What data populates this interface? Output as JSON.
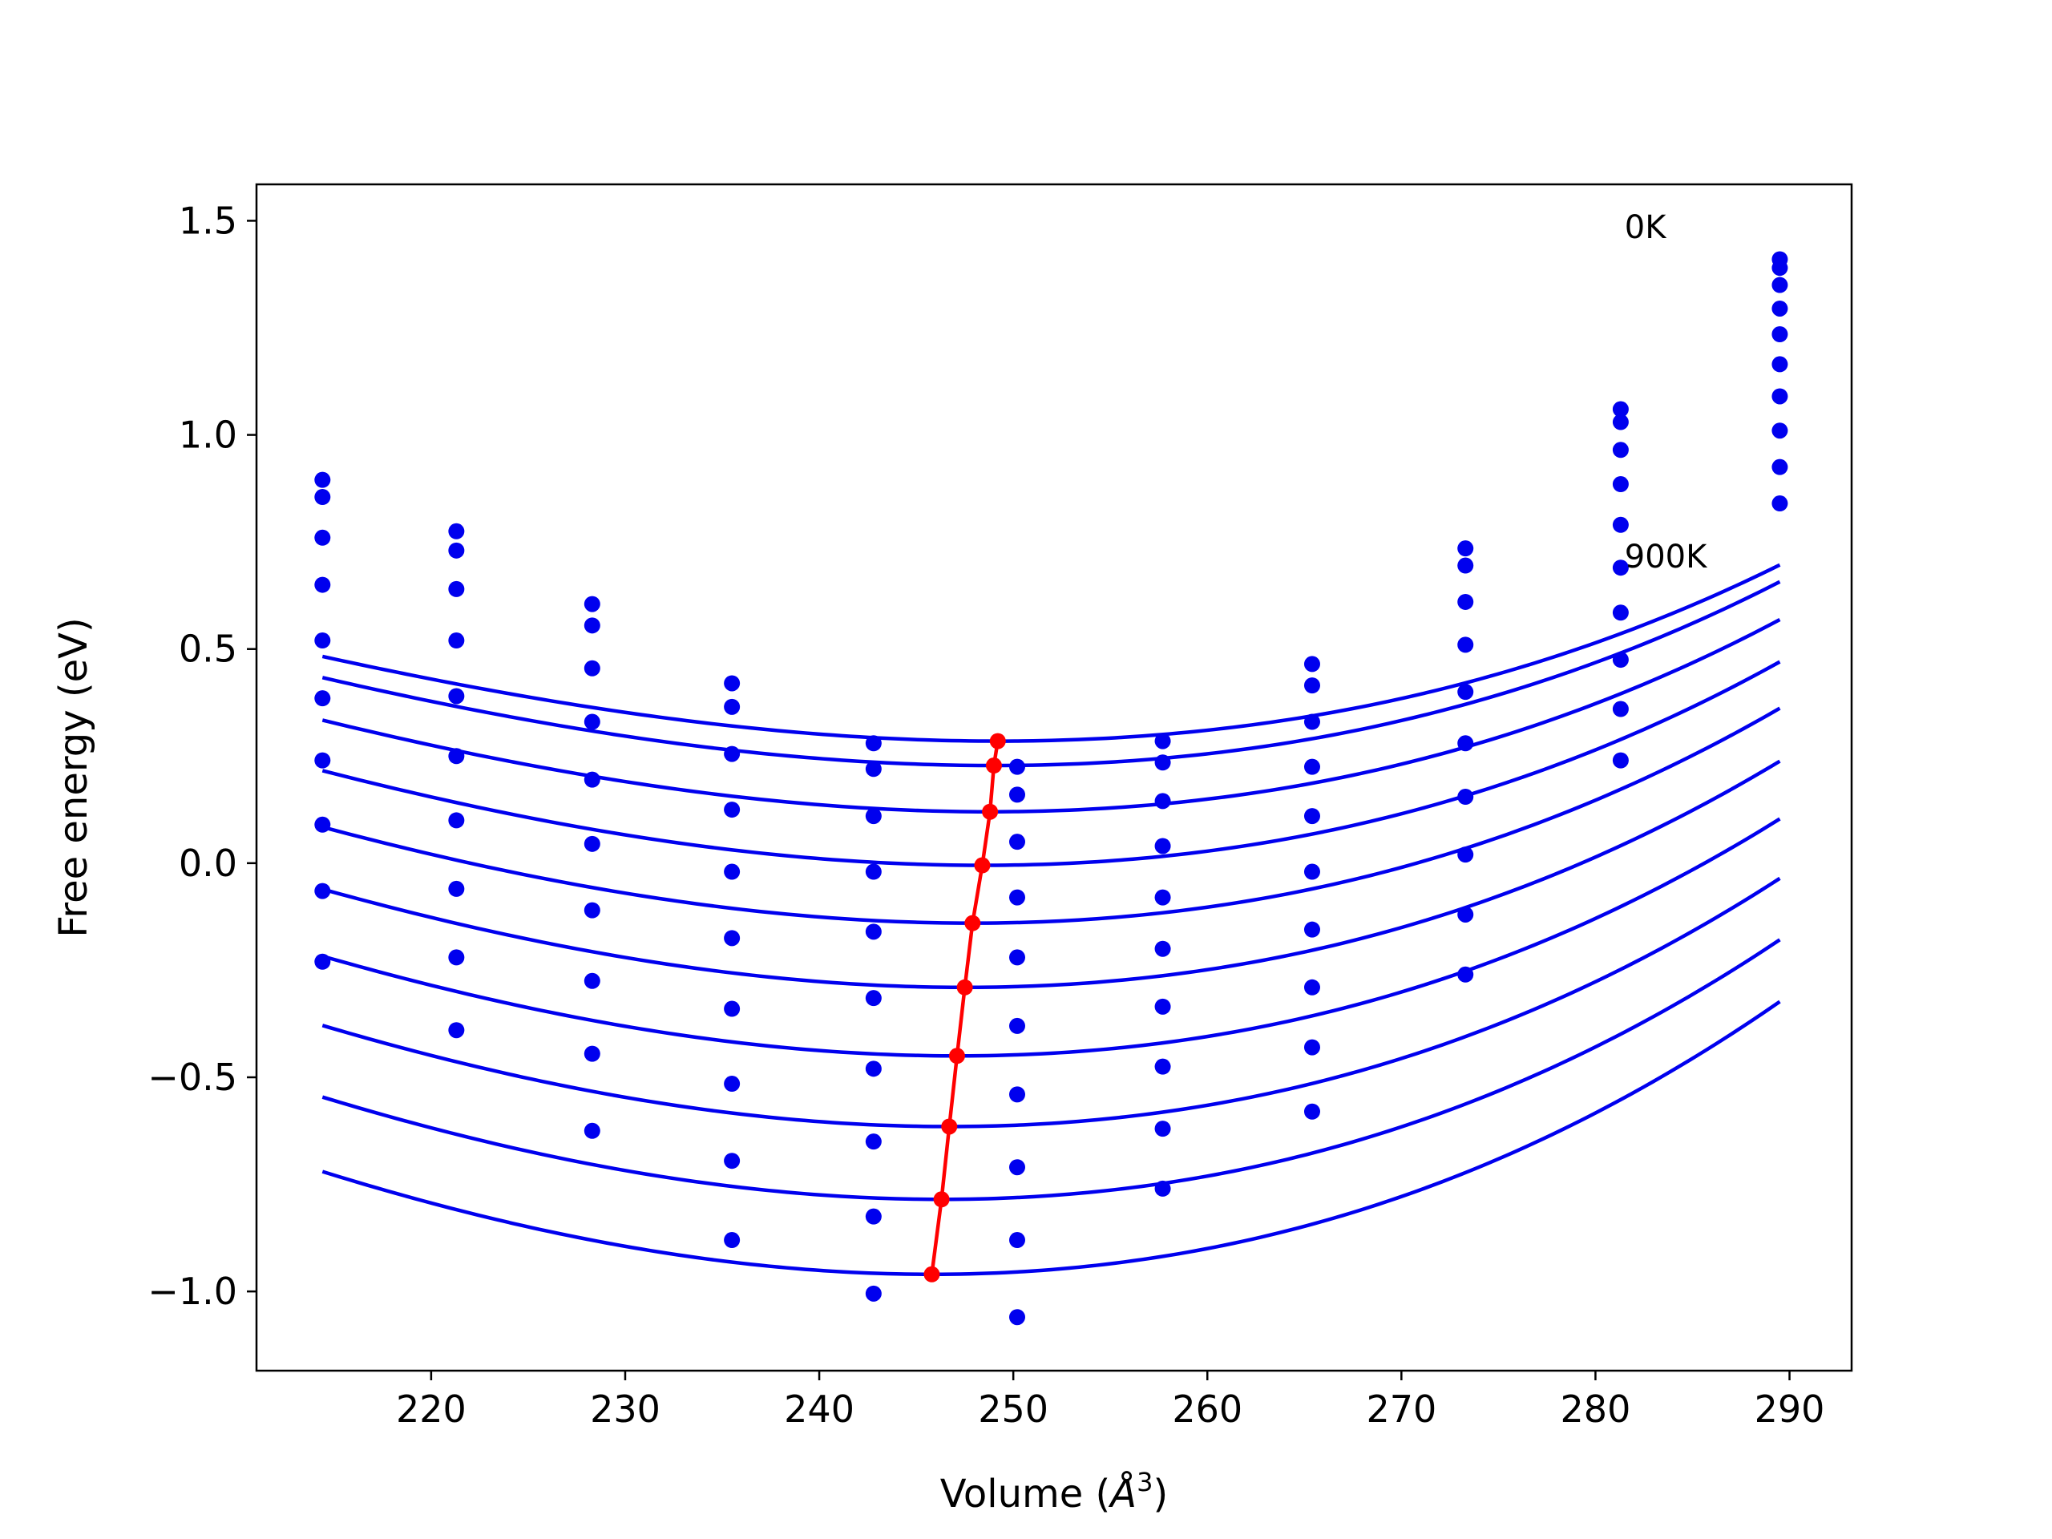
{
  "chart_data": {
    "type": "scatter",
    "title": "",
    "xlabel": "Volume (",
    "xlabel_symbol": "Å",
    "xlabel_exp": "3",
    "xlabel_close": ")",
    "ylabel": "Free energy (eV)",
    "xlim": [
      211,
      293.2
    ],
    "ylim": [
      -1.185,
      1.585
    ],
    "xticks": [
      220,
      230,
      240,
      250,
      260,
      270,
      280,
      290
    ],
    "yticks": [
      -1.0,
      -0.5,
      0.0,
      0.5,
      1.0,
      1.5
    ],
    "xtick_labels": [
      "220",
      "230",
      "240",
      "250",
      "260",
      "270",
      "280",
      "290"
    ],
    "ytick_labels": [
      "−1.0",
      "−0.5",
      "0.0",
      "0.5",
      "1.0",
      "1.5"
    ],
    "grid": false,
    "annotations": [
      {
        "text": "0K",
        "x": 281.5,
        "y": 1.46
      },
      {
        "text": "900K",
        "x": 281.5,
        "y": 0.69
      }
    ],
    "volumes": [
      214.4,
      221.3,
      228.3,
      235.5,
      242.8,
      250.2,
      257.7,
      265.4,
      273.3,
      281.3,
      289.5
    ],
    "series": [
      {
        "values": [
          0.895,
          0.775,
          0.605,
          0.42,
          0.28,
          0.225,
          0.285,
          0.465,
          0.735,
          1.06,
          1.41
        ],
        "fit": {
          "v0": 249.2,
          "e0": 0.285,
          "a": 0.000205,
          "b": 1.2e-06
        }
      },
      {
        "values": [
          0.855,
          0.73,
          0.555,
          0.365,
          0.22,
          0.16,
          0.235,
          0.415,
          0.695,
          1.03,
          1.39
        ],
        "fit": {
          "v0": 249.0,
          "e0": 0.228,
          "a": 0.000213,
          "b": 1.2e-06
        }
      },
      {
        "values": [
          0.76,
          0.64,
          0.455,
          0.255,
          0.11,
          0.05,
          0.145,
          0.33,
          0.61,
          0.965,
          1.35
        ],
        "fit": {
          "v0": 248.8,
          "e0": 0.12,
          "a": 0.000222,
          "b": 1.2e-06
        }
      },
      {
        "values": [
          0.65,
          0.52,
          0.33,
          0.125,
          -0.02,
          -0.08,
          0.04,
          0.225,
          0.51,
          0.885,
          1.295
        ],
        "fit": {
          "v0": 248.4,
          "e0": -0.005,
          "a": 0.000232,
          "b": 1.2e-06
        }
      },
      {
        "values": [
          0.52,
          0.39,
          0.195,
          -0.02,
          -0.16,
          -0.22,
          -0.08,
          0.11,
          0.4,
          0.79,
          1.235
        ],
        "fit": {
          "v0": 247.9,
          "e0": -0.14,
          "a": 0.00024,
          "b": 1.2e-06
        }
      },
      {
        "values": [
          0.385,
          0.25,
          0.045,
          -0.175,
          -0.315,
          -0.38,
          -0.2,
          -0.02,
          0.28,
          0.69,
          1.165
        ],
        "fit": {
          "v0": 247.5,
          "e0": -0.29,
          "a": 0.000249,
          "b": 1.2e-06
        }
      },
      {
        "values": [
          0.24,
          0.1,
          -0.11,
          -0.34,
          -0.48,
          -0.54,
          -0.335,
          -0.155,
          0.155,
          0.585,
          1.09
        ],
        "fit": {
          "v0": 247.1,
          "e0": -0.45,
          "a": 0.000257,
          "b": 1.2e-06
        }
      },
      {
        "values": [
          0.09,
          -0.06,
          -0.275,
          -0.515,
          -0.65,
          -0.71,
          -0.475,
          -0.29,
          0.02,
          0.475,
          1.01
        ],
        "fit": {
          "v0": 246.7,
          "e0": -0.615,
          "a": 0.000265,
          "b": 1.2e-06
        }
      },
      {
        "values": [
          -0.065,
          -0.22,
          -0.445,
          -0.695,
          -0.825,
          -0.88,
          -0.62,
          -0.43,
          -0.12,
          0.36,
          0.925
        ],
        "fit": {
          "v0": 246.3,
          "e0": -0.785,
          "a": 0.000273,
          "b": 1.2e-06
        }
      },
      {
        "values": [
          -0.23,
          -0.39,
          -0.625,
          -0.88,
          -1.005,
          -1.06,
          -0.76,
          -0.58,
          -0.26,
          0.24,
          0.84
        ],
        "fit": {
          "v0": 245.8,
          "e0": -0.96,
          "a": 0.000281,
          "b": 1.2e-06
        }
      }
    ],
    "minima": {
      "x": [
        249.2,
        249.0,
        248.8,
        248.4,
        247.9,
        247.5,
        247.1,
        246.7,
        246.3,
        245.8
      ],
      "y": [
        0.285,
        0.228,
        0.12,
        -0.005,
        -0.14,
        -0.29,
        -0.45,
        -0.615,
        -0.785,
        -0.96
      ]
    },
    "colors": {
      "curve": "#0000ee",
      "points": "#0000ee",
      "minima": "#ff0000",
      "axes": "#000000"
    }
  }
}
